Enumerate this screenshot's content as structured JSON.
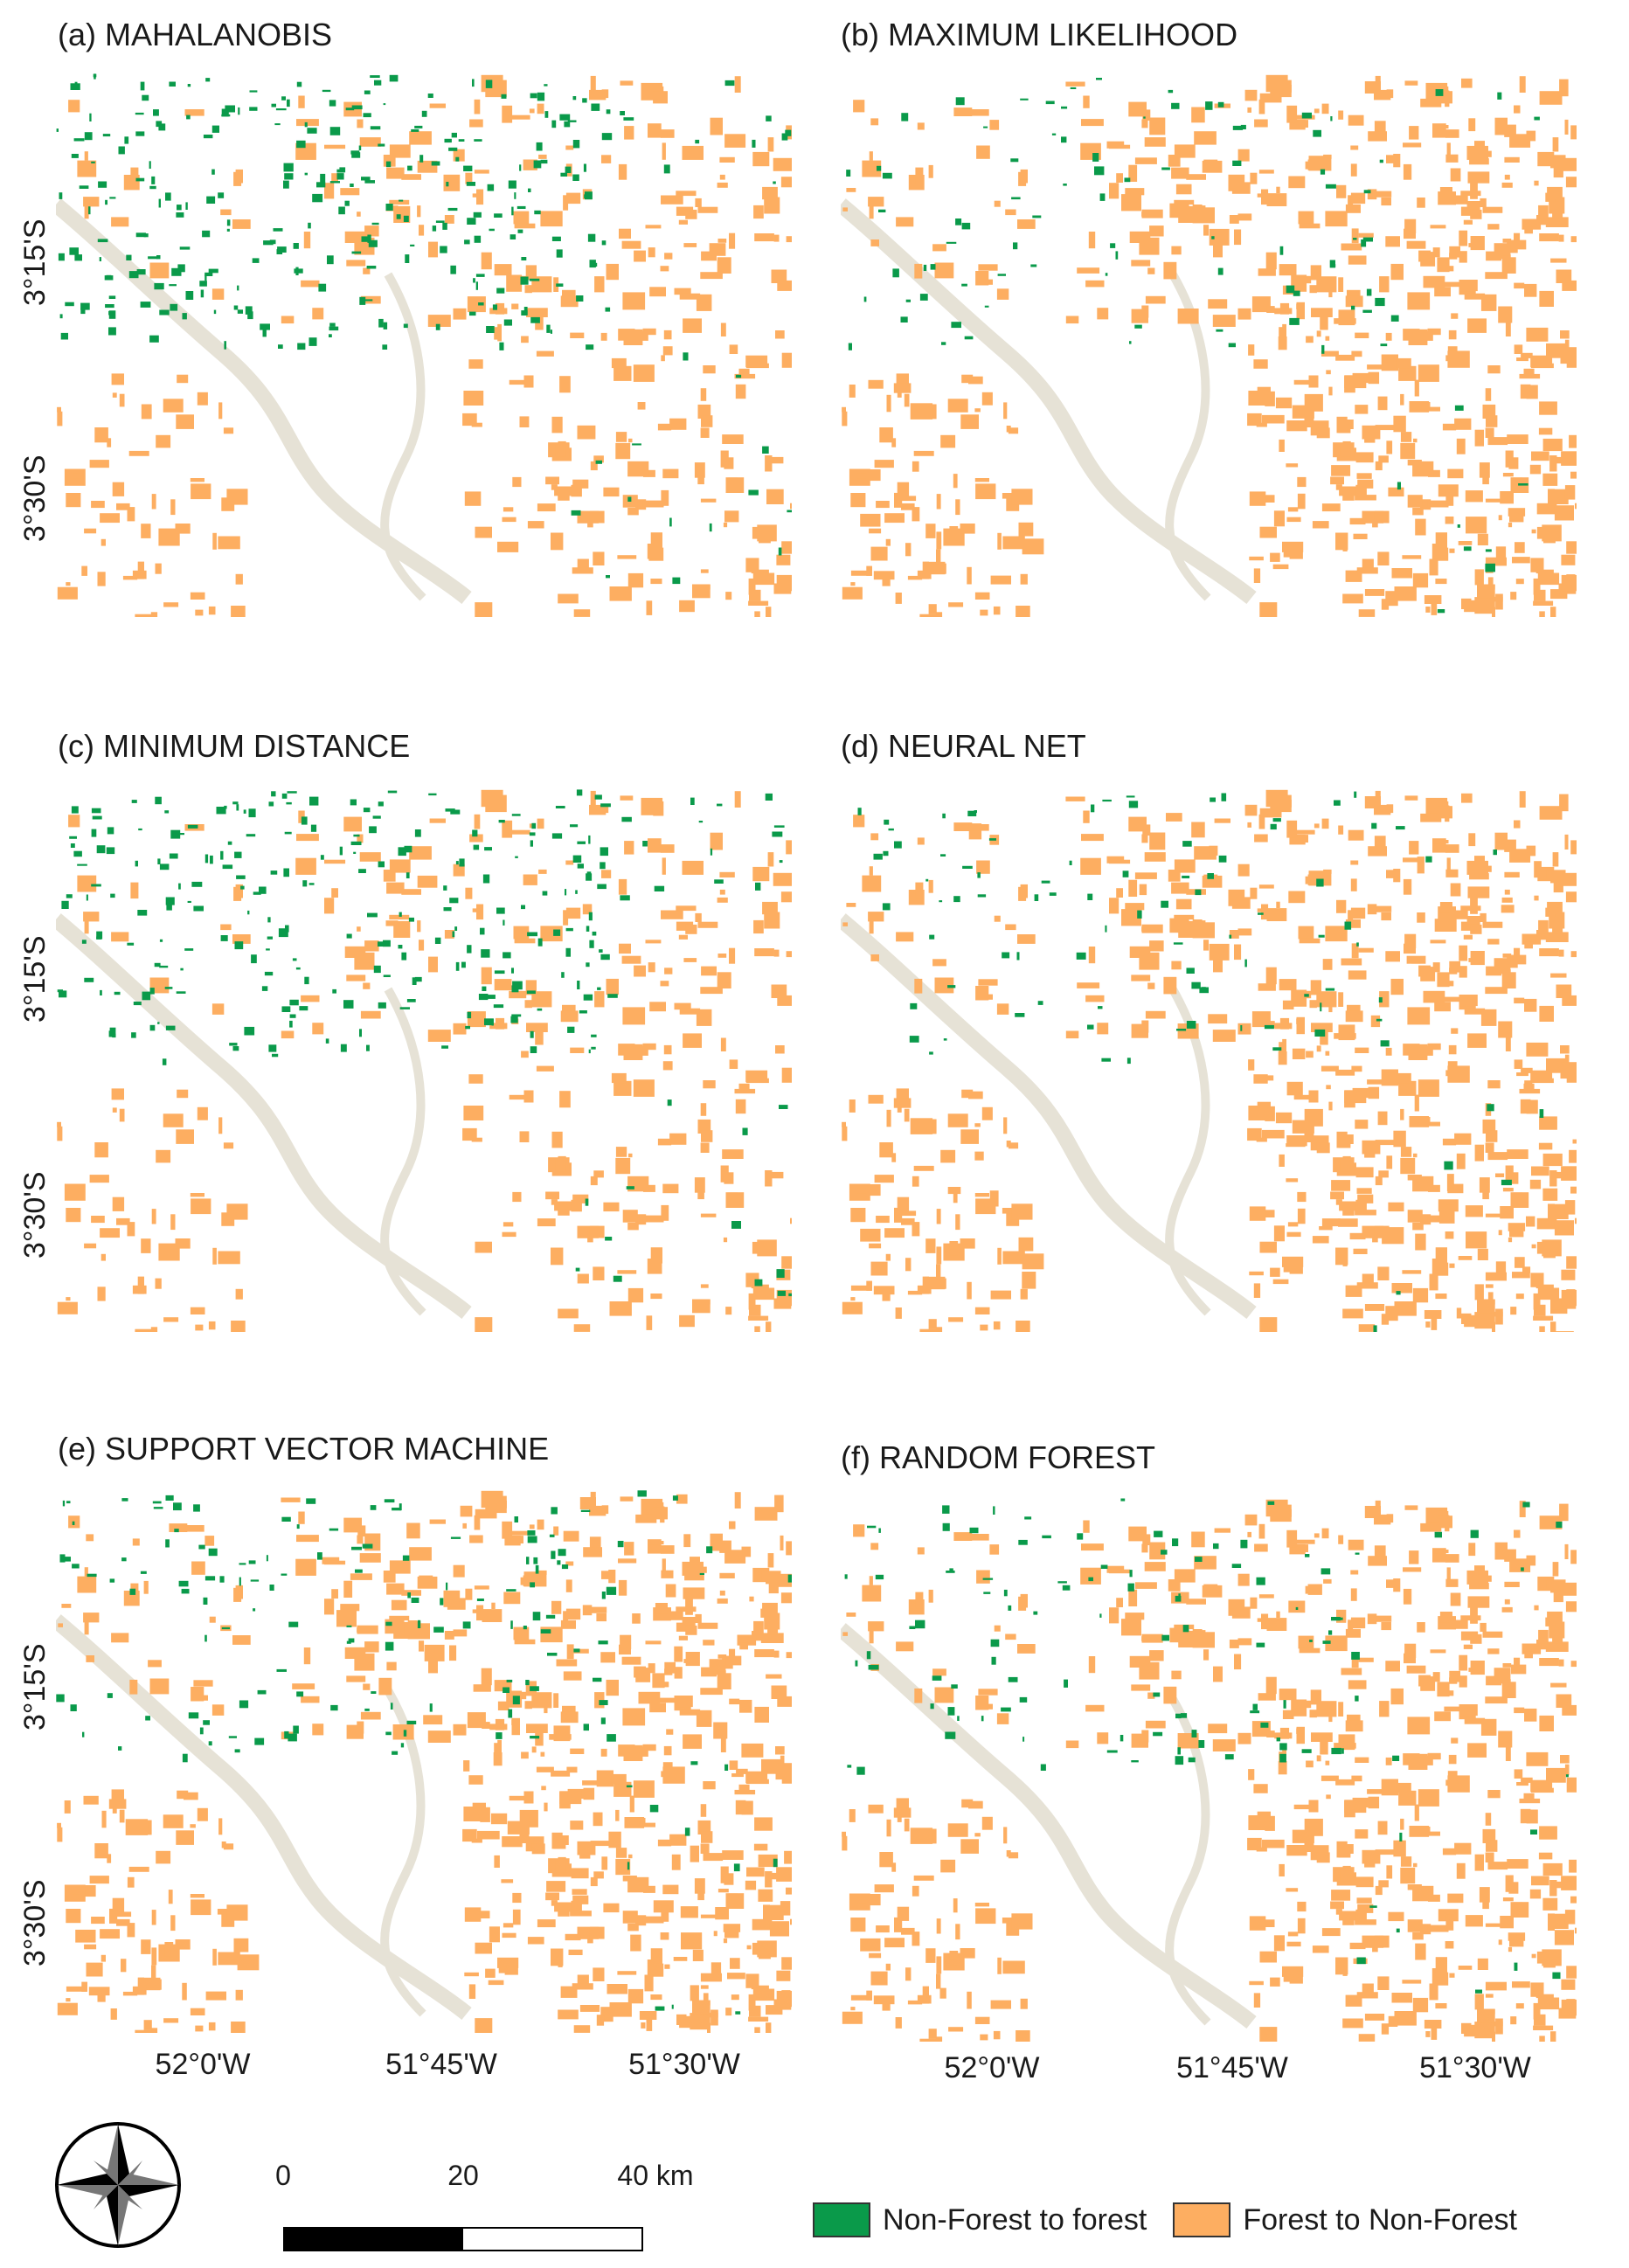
{
  "panels": [
    {
      "title": "(a) MAHALANOBIS",
      "green_level": 0.95,
      "orange_level": 0.55
    },
    {
      "title": "(b) MAXIMUM LIKELIHOOD",
      "green_level": 0.35,
      "orange_level": 0.95
    },
    {
      "title": "(c) MINIMUM DISTANCE",
      "green_level": 1.0,
      "orange_level": 0.5
    },
    {
      "title": "(d) NEURAL NET",
      "green_level": 0.3,
      "orange_level": 1.0
    },
    {
      "title": "(e) SUPPORT VECTOR MACHINE",
      "green_level": 0.45,
      "orange_level": 0.95
    },
    {
      "title": "(f) RANDOM FOREST",
      "green_level": 0.4,
      "orange_level": 0.9
    }
  ],
  "lat_labels": [
    "3°15'S",
    "3°30'S"
  ],
  "lon_labels": [
    "52°0'W",
    "51°45'W",
    "51°30'W"
  ],
  "scale": {
    "ticks": [
      "0",
      "20",
      "40 km"
    ]
  },
  "legend": [
    {
      "label": "Non-Forest to forest",
      "color": "#0a9a4a"
    },
    {
      "label": "Forest to Non-Forest",
      "color": "#fdae61"
    }
  ],
  "colors": {
    "nonforest_to_forest": "#0a9a4a",
    "forest_to_nonforest": "#fdae61",
    "river": "#e6e2d6"
  },
  "icons": [
    "north-arrow-compass-icon"
  ]
}
